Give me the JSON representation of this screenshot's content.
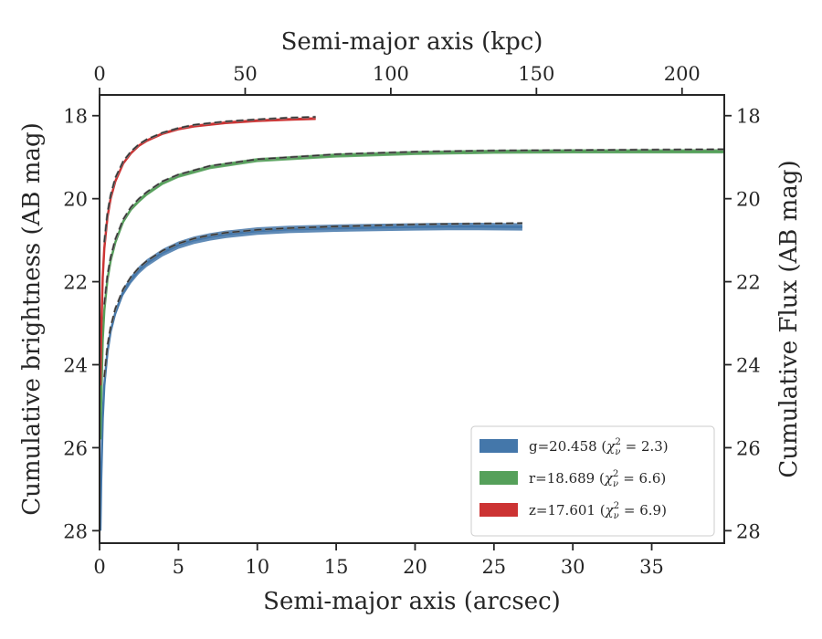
{
  "chart_data": {
    "type": "line",
    "title": "",
    "xlabel": "Semi-major axis (arcsec)",
    "ylabel": "Cumulative brightness (AB mag)",
    "x2label": "Semi-major axis (kpc)",
    "y2label": "Cumulative Flux (AB mag)",
    "xlim": [
      0,
      39.6
    ],
    "ylim": [
      28.3,
      17.5
    ],
    "x2lim": [
      0,
      214.5
    ],
    "y_inverted": true,
    "xticks": [
      0,
      5,
      10,
      15,
      20,
      25,
      30,
      35
    ],
    "x2ticks": [
      0,
      50,
      100,
      150,
      200
    ],
    "yticks": [
      18,
      20,
      22,
      24,
      26,
      28
    ],
    "grid": false,
    "legend_position": "lower-right",
    "series": [
      {
        "name": "g=20.458",
        "chi_text": "χ",
        "chi_sub": "ν",
        "chi_sup": "2",
        "chi_val": " = 2.3)",
        "color": "#4477aa",
        "model_color": "#333333",
        "band_width": 0.18,
        "x": [
          0.05,
          0.1,
          0.2,
          0.3,
          0.5,
          0.7,
          1.0,
          1.5,
          2,
          2.5,
          3,
          4,
          5,
          6,
          7,
          8,
          10,
          12,
          15,
          18,
          20,
          22,
          24,
          26.8
        ],
        "y": [
          28.0,
          26.8,
          25.3,
          24.5,
          23.7,
          23.2,
          22.75,
          22.25,
          21.95,
          21.72,
          21.55,
          21.3,
          21.12,
          21.0,
          20.92,
          20.86,
          20.78,
          20.74,
          20.71,
          20.69,
          20.68,
          20.67,
          20.67,
          20.68
        ],
        "model_x": [
          0.3,
          0.5,
          0.7,
          1.0,
          1.5,
          2,
          2.5,
          3,
          4,
          5,
          6,
          7,
          8,
          10,
          12,
          15,
          18,
          20,
          22,
          24,
          26.8
        ],
        "model_y": [
          24.3,
          23.55,
          23.1,
          22.65,
          22.18,
          21.88,
          21.66,
          21.5,
          21.25,
          21.08,
          20.96,
          20.88,
          20.82,
          20.75,
          20.71,
          20.67,
          20.64,
          20.62,
          20.61,
          20.6,
          20.59
        ]
      },
      {
        "name": "r=18.689",
        "chi_text": "χ",
        "chi_sub": "ν",
        "chi_sup": "2",
        "chi_val": " = 6.6)",
        "color": "#55a05a",
        "model_color": "#333333",
        "band_width": 0.1,
        "x": [
          0.05,
          0.1,
          0.2,
          0.3,
          0.5,
          0.7,
          1.0,
          1.5,
          2,
          2.5,
          3,
          4,
          5,
          7,
          10,
          15,
          20,
          25,
          30,
          35,
          39.6
        ],
        "y": [
          25.8,
          24.9,
          23.4,
          22.7,
          21.95,
          21.5,
          21.05,
          20.55,
          20.25,
          20.05,
          19.88,
          19.62,
          19.45,
          19.24,
          19.07,
          18.96,
          18.9,
          18.87,
          18.86,
          18.86,
          18.86
        ],
        "model_x": [
          0.3,
          0.5,
          0.7,
          1.0,
          1.5,
          2,
          2.5,
          3,
          4,
          5,
          7,
          10,
          15,
          20,
          25,
          30,
          35,
          39.6
        ],
        "model_y": [
          22.55,
          21.85,
          21.42,
          20.98,
          20.5,
          20.2,
          20.0,
          19.84,
          19.58,
          19.42,
          19.21,
          19.05,
          18.93,
          18.87,
          18.84,
          18.83,
          18.82,
          18.81
        ]
      },
      {
        "name": "z=17.601",
        "chi_text": "χ",
        "chi_sub": "ν",
        "chi_sup": "2",
        "chi_val": " = 6.9)",
        "color": "#cc3333",
        "model_color": "#333333",
        "band_width": 0.07,
        "x": [
          0.05,
          0.1,
          0.2,
          0.3,
          0.5,
          0.7,
          1.0,
          1.5,
          2,
          2.5,
          3,
          4,
          5,
          6,
          8,
          10,
          12,
          13.7
        ],
        "y": [
          24.5,
          23.3,
          21.9,
          21.2,
          20.45,
          20.0,
          19.58,
          19.15,
          18.9,
          18.72,
          18.6,
          18.43,
          18.32,
          18.25,
          18.17,
          18.12,
          18.09,
          18.07
        ],
        "model_x": [
          0.3,
          0.5,
          0.7,
          1.0,
          1.5,
          2,
          2.5,
          3,
          4,
          5,
          6,
          8,
          10,
          12,
          13.7
        ],
        "model_y": [
          21.05,
          20.35,
          19.92,
          19.5,
          19.1,
          18.86,
          18.69,
          18.57,
          18.41,
          18.3,
          18.22,
          18.14,
          18.09,
          18.05,
          18.03
        ]
      }
    ]
  }
}
